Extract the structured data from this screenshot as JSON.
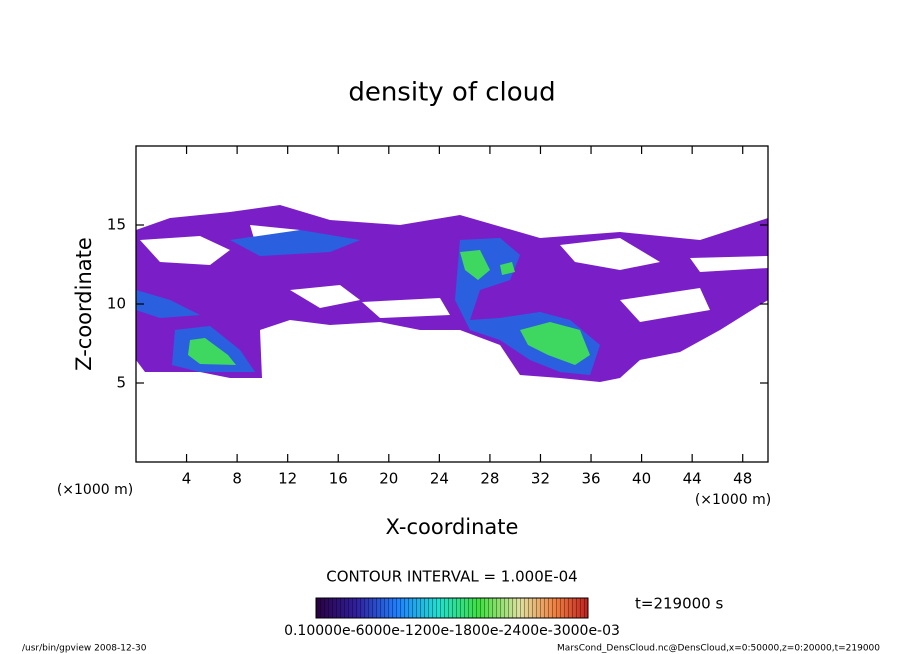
{
  "chart_data": {
    "type": "contour",
    "title": "density of cloud",
    "xlabel": "X-coordinate",
    "ylabel": "Z-coordinate",
    "xunit": "(×1000 m)",
    "yunit": "(×1000 m)",
    "xlim": [
      0,
      50
    ],
    "xticks": [
      4,
      8,
      12,
      16,
      20,
      24,
      28,
      32,
      36,
      40,
      44,
      48
    ],
    "ylim": [
      0,
      20
    ],
    "yticks": [
      5,
      10,
      15
    ],
    "contour_interval": "CONTOUR INTERVAL = 1.000E-04",
    "time_label": "t=219000 s",
    "colorbar_label": "0.10000e-6000e-1200e-1800e-2400e-3000e-03",
    "footer_left": "/usr/bin/gpview  2008-12-30",
    "footer_right": "MarsCond_DensCloud.nc@DensCloud,x=0:50000,z=0:20000,t=219000"
  }
}
